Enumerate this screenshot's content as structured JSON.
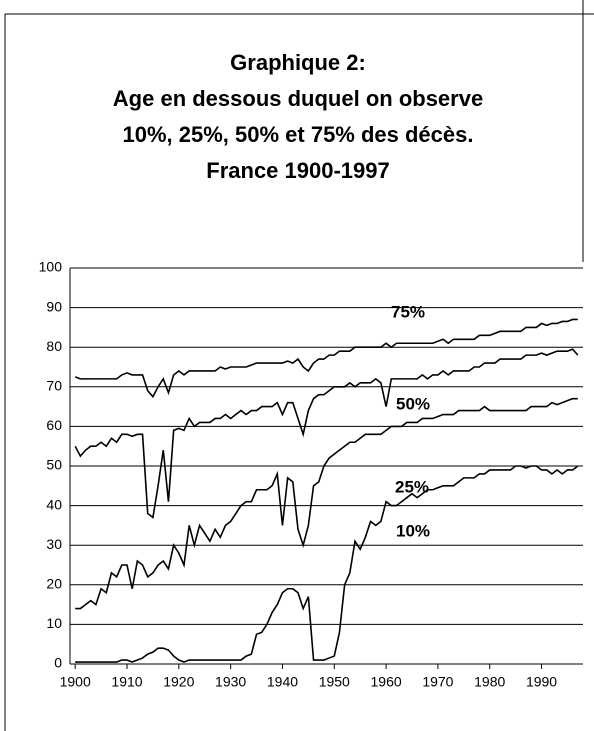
{
  "chart_data": {
    "type": "line",
    "title": [
      "Graphique 2:",
      "Age en dessous duquel on observe",
      "10%, 25%, 50% et 75% des décès.",
      "France 1900-1997"
    ],
    "x": [
      1900,
      1901,
      1902,
      1903,
      1904,
      1905,
      1906,
      1907,
      1908,
      1909,
      1910,
      1911,
      1912,
      1913,
      1914,
      1915,
      1916,
      1917,
      1918,
      1919,
      1920,
      1921,
      1922,
      1923,
      1924,
      1925,
      1926,
      1927,
      1928,
      1929,
      1930,
      1931,
      1932,
      1933,
      1934,
      1935,
      1936,
      1937,
      1938,
      1939,
      1940,
      1941,
      1942,
      1943,
      1944,
      1945,
      1946,
      1947,
      1948,
      1949,
      1950,
      1951,
      1952,
      1953,
      1954,
      1955,
      1956,
      1957,
      1958,
      1959,
      1960,
      1961,
      1962,
      1963,
      1964,
      1965,
      1966,
      1967,
      1968,
      1969,
      1970,
      1971,
      1972,
      1973,
      1974,
      1975,
      1976,
      1977,
      1978,
      1979,
      1980,
      1981,
      1982,
      1983,
      1984,
      1985,
      1986,
      1987,
      1988,
      1989,
      1990,
      1991,
      1992,
      1993,
      1994,
      1995,
      1996,
      1997
    ],
    "series": [
      {
        "name": "75%",
        "color": "#000000",
        "values": [
          72.5,
          72,
          72,
          72,
          72,
          72,
          72,
          72,
          72,
          73,
          73.5,
          73,
          73,
          73,
          69,
          67.5,
          70,
          72,
          68.5,
          73,
          74,
          73,
          74,
          74,
          74,
          74,
          74,
          74,
          75,
          74.5,
          75,
          75,
          75,
          75,
          75.5,
          76,
          76,
          76,
          76,
          76,
          76,
          76.5,
          76,
          77,
          75,
          74,
          76,
          77,
          77,
          78,
          78,
          79,
          79,
          79,
          80,
          80,
          80,
          80,
          80,
          80,
          81,
          80,
          81,
          81,
          81,
          81,
          81,
          81,
          81,
          81,
          81.5,
          82,
          81,
          82,
          82,
          82,
          82,
          82,
          83,
          83,
          83,
          83.5,
          84,
          84,
          84,
          84,
          84,
          85,
          85,
          85,
          86,
          85.5,
          86,
          86,
          86.5,
          86.5,
          87,
          87
        ]
      },
      {
        "name": "50%",
        "color": "#000000",
        "values": [
          55,
          52.5,
          54,
          55,
          55,
          56,
          55,
          57,
          56,
          58,
          58,
          57.5,
          58,
          58,
          38,
          37,
          45,
          54,
          41,
          59,
          59.5,
          59,
          62,
          60,
          61,
          61,
          61,
          62,
          62,
          63,
          62,
          63,
          64,
          63,
          64,
          64,
          65,
          65,
          65,
          66,
          63,
          66,
          66,
          62,
          58,
          64,
          67,
          68,
          68,
          69,
          70,
          70,
          70,
          71,
          70,
          71,
          71,
          71,
          72,
          71,
          65,
          72,
          72,
          72,
          72,
          72,
          72,
          73,
          72,
          73,
          73,
          74,
          73,
          74,
          74,
          74,
          74,
          75,
          75,
          76,
          76,
          76,
          77,
          77,
          77,
          77,
          77,
          78,
          78,
          78,
          78.5,
          78,
          78.5,
          79,
          79,
          79,
          79.5,
          78
        ]
      },
      {
        "name": "25%",
        "color": "#000000",
        "values": [
          14,
          14,
          15,
          16,
          15,
          19,
          18,
          23,
          22,
          25,
          25,
          19,
          26,
          25,
          22,
          23,
          25,
          26,
          24,
          30,
          28,
          25,
          35,
          30,
          35,
          33,
          31,
          34,
          32,
          35,
          36,
          38,
          40,
          41,
          41,
          44,
          44,
          44,
          45,
          48,
          35,
          47,
          46,
          34,
          30,
          35,
          45,
          46,
          50,
          52,
          53,
          54,
          55,
          56,
          56,
          57,
          58,
          58,
          58,
          58,
          59,
          60,
          60,
          60,
          61,
          61,
          61,
          62,
          62,
          62,
          62.5,
          63,
          63,
          63,
          64,
          64,
          64,
          64,
          64,
          65,
          64,
          64,
          64,
          64,
          64,
          64,
          64,
          64,
          65,
          65,
          65,
          65,
          66,
          65.5,
          66,
          66.5,
          67,
          67
        ]
      },
      {
        "name": "10%",
        "color": "#000000",
        "values": [
          0.5,
          0.5,
          0.5,
          0.5,
          0.5,
          0.5,
          0.5,
          0.5,
          0.5,
          1,
          1,
          0.5,
          1,
          1.5,
          2.5,
          3,
          4,
          4,
          3.5,
          2,
          1,
          0.5,
          1,
          1,
          1,
          1,
          1,
          1,
          1,
          1,
          1,
          1,
          1,
          2,
          2.5,
          7.5,
          8,
          10,
          13,
          15,
          18,
          19,
          19,
          18,
          14,
          17,
          1,
          1,
          1,
          1.5,
          2,
          8,
          20,
          23,
          31,
          29,
          32,
          36,
          35,
          36,
          41,
          40,
          40,
          41,
          42,
          43,
          42,
          43,
          44,
          44,
          44.5,
          45,
          45,
          45,
          46,
          47,
          47,
          47,
          48,
          48,
          49,
          49,
          49,
          49,
          49,
          50,
          50,
          49.5,
          50,
          50,
          49,
          49,
          48,
          49,
          48,
          49,
          49,
          50
        ]
      }
    ],
    "xlim": [
      1899,
      1998
    ],
    "ylim": [
      0,
      100
    ],
    "xticks": [
      1900,
      1910,
      1920,
      1930,
      1940,
      1950,
      1960,
      1970,
      1980,
      1990
    ],
    "yticks": [
      0,
      10,
      20,
      30,
      40,
      50,
      60,
      70,
      80,
      90,
      100
    ],
    "grid": true
  }
}
